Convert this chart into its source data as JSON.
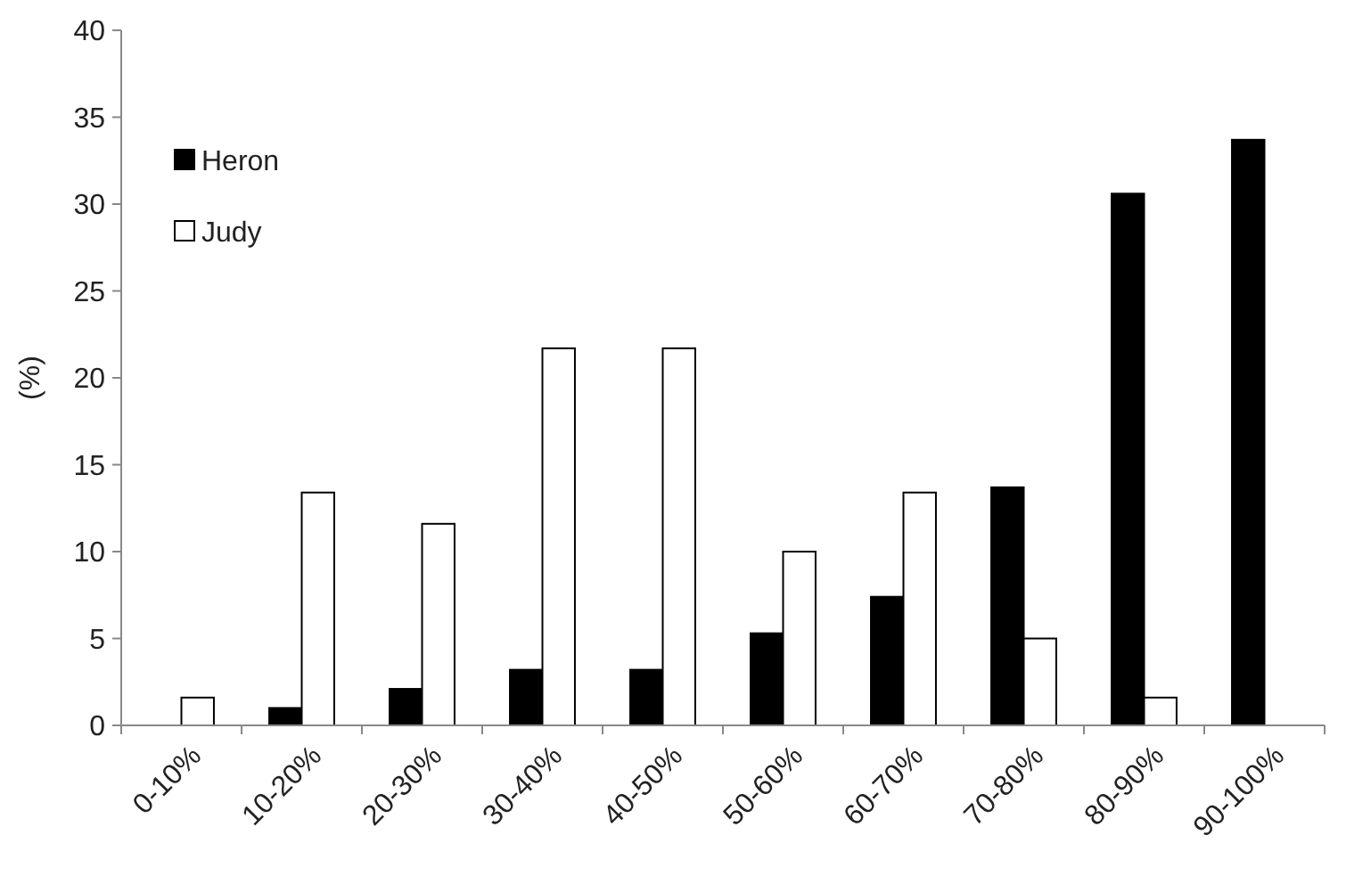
{
  "chart_data": {
    "type": "bar",
    "ylabel": "(%)",
    "categories": [
      "0-10%",
      "10-20%",
      "20-30%",
      "30-40%",
      "40-50%",
      "50-60%",
      "60-70%",
      "70-80%",
      "80-90%",
      "90-100%"
    ],
    "series": [
      {
        "name": "Heron",
        "color": "#000000",
        "values": [
          0,
          1.0,
          2.1,
          3.2,
          3.2,
          5.3,
          7.4,
          13.7,
          30.6,
          33.7
        ]
      },
      {
        "name": "Judy",
        "color": "#ffffff",
        "values": [
          1.6,
          13.4,
          11.6,
          21.7,
          21.7,
          10,
          13.4,
          5,
          1.6,
          0
        ]
      }
    ],
    "ylim": [
      0,
      40
    ],
    "yticks": [
      0,
      5,
      10,
      15,
      20,
      25,
      30,
      35,
      40
    ],
    "grid": false,
    "legend": "top left"
  }
}
